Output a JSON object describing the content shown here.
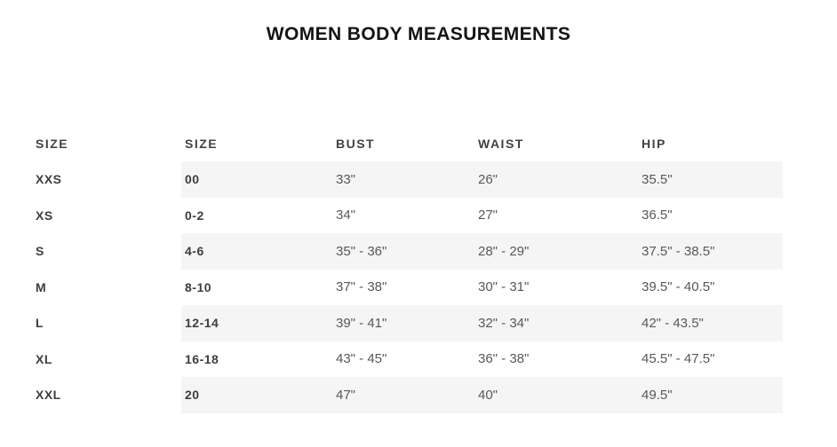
{
  "title": "WOMEN BODY MEASUREMENTS",
  "colors": {
    "stripe_background": "#f5f5f5",
    "title_text": "#141414",
    "header_text": "#3f4347",
    "label_text": "#3a3e43",
    "value_text": "#55585c"
  },
  "table": {
    "headers": [
      "SIZE",
      "SIZE",
      "BUST",
      "WAIST",
      "HIP"
    ],
    "rows": [
      {
        "cells": [
          "XXS",
          "00",
          "33\"",
          "26\"",
          "35.5\""
        ]
      },
      {
        "cells": [
          "XS",
          "0-2",
          "34\"",
          "27\"",
          "36.5\""
        ]
      },
      {
        "cells": [
          "S",
          "4-6",
          "35\" - 36\"",
          "28\" - 29\"",
          "37.5\" - 38.5\""
        ]
      },
      {
        "cells": [
          "M",
          "8-10",
          "37\" - 38\"",
          "30\" - 31\"",
          "39.5\" - 40.5\""
        ]
      },
      {
        "cells": [
          "L",
          "12-14",
          "39\" - 41\"",
          "32\" - 34\"",
          "42\" - 43.5\""
        ]
      },
      {
        "cells": [
          "XL",
          "16-18",
          "43\" - 45\"",
          "36\" - 38\"",
          "45.5\" - 47.5\""
        ]
      },
      {
        "cells": [
          "XXL",
          "20",
          "47\"",
          "40\"",
          "49.5\""
        ]
      }
    ]
  }
}
